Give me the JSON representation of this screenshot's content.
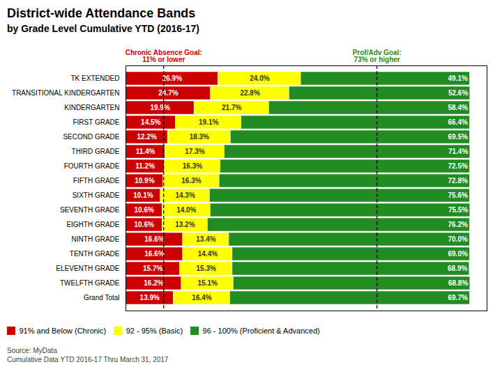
{
  "chart_data": {
    "type": "bar",
    "orientation": "horizontal",
    "stacked": true,
    "title": "District-wide Attendance Bands",
    "subtitle": "by Grade Level Cumulative YTD (2016-17)",
    "caption": "Source: MyData\nCumulative Data YTD 2016-17 Thru March 31, 2017",
    "categories": [
      "TK EXTENDED",
      "TRANSITIONAL KINDERGARTEN",
      "KINDERGARTEN",
      "FIRST GRADE",
      "SECOND GRADE",
      "THIRD GRADE",
      "FOURTH GRADE",
      "FIFTH GRADE",
      "SIXTH GRADE",
      "SEVENTH GRADE",
      "EIGHTH GRADE",
      "NINTH GRADE",
      "TENTH GRADE",
      "ELEVENTH GRADE",
      "TWELFTH GRADE",
      "Grand Total"
    ],
    "series": [
      {
        "name": "91% and Below (Chronic)",
        "color": "#CC0000",
        "values": [
          26.9,
          24.7,
          19.9,
          14.5,
          12.2,
          11.4,
          11.2,
          10.9,
          10.1,
          10.6,
          10.6,
          16.6,
          16.6,
          15.7,
          16.2,
          13.9
        ],
        "value_labels": [
          "26.9%",
          "24.7%",
          "19.9%",
          "14.5%",
          "12.2%",
          "11.4%",
          "11.2%",
          "10.9%",
          "10.1%",
          "10.6%",
          "10.6%",
          "16.6%",
          "16.6%",
          "15.7%",
          "16.2%",
          "13.9%"
        ]
      },
      {
        "name": "92 - 95% (Basic)",
        "color": "#FFFF00",
        "values": [
          24.0,
          22.8,
          21.7,
          19.1,
          18.3,
          17.3,
          16.3,
          16.3,
          14.3,
          14.0,
          13.2,
          13.4,
          14.4,
          15.3,
          15.1,
          16.4
        ],
        "value_labels": [
          "24.0%",
          "22.8%",
          "21.7%",
          "19.1%",
          "18.3%",
          "17.3%",
          "16.3%",
          "16.3%",
          "14.3%",
          "14.0%",
          "13.2%",
          "13.4%",
          "14.4%",
          "15.3%",
          "15.1%",
          "16.4%"
        ]
      },
      {
        "name": "96 - 100% (Proficient & Advanced)",
        "color": "#228B22",
        "values": [
          49.1,
          52.6,
          58.4,
          66.4,
          69.5,
          71.4,
          72.5,
          72.8,
          75.6,
          75.5,
          76.2,
          70.0,
          69.0,
          68.9,
          68.8,
          69.7
        ],
        "value_labels": [
          "49.1%",
          "52.6%",
          "58.4%",
          "66.4%",
          "69.5%",
          "71.4%",
          "72.5%",
          "72.8%",
          "75.6%",
          "75.5%",
          "76.2%",
          "70.0%",
          "69.0%",
          "68.9%",
          "68.8%",
          "69.7%"
        ]
      }
    ],
    "xlim": [
      0,
      105
    ],
    "tick_labels": "y",
    "data_labels": true,
    "legend": "bottom",
    "annotations": [
      {
        "text": "Chronic Absence Goal:\n11% or lower",
        "x": 11.0,
        "color": "#CC0000",
        "line_style": "dashed"
      },
      {
        "text": "Prof/Adv Goal:\n73% or higher",
        "x": 73.0,
        "color": "#228B22",
        "line_style": "dashed"
      }
    ]
  }
}
